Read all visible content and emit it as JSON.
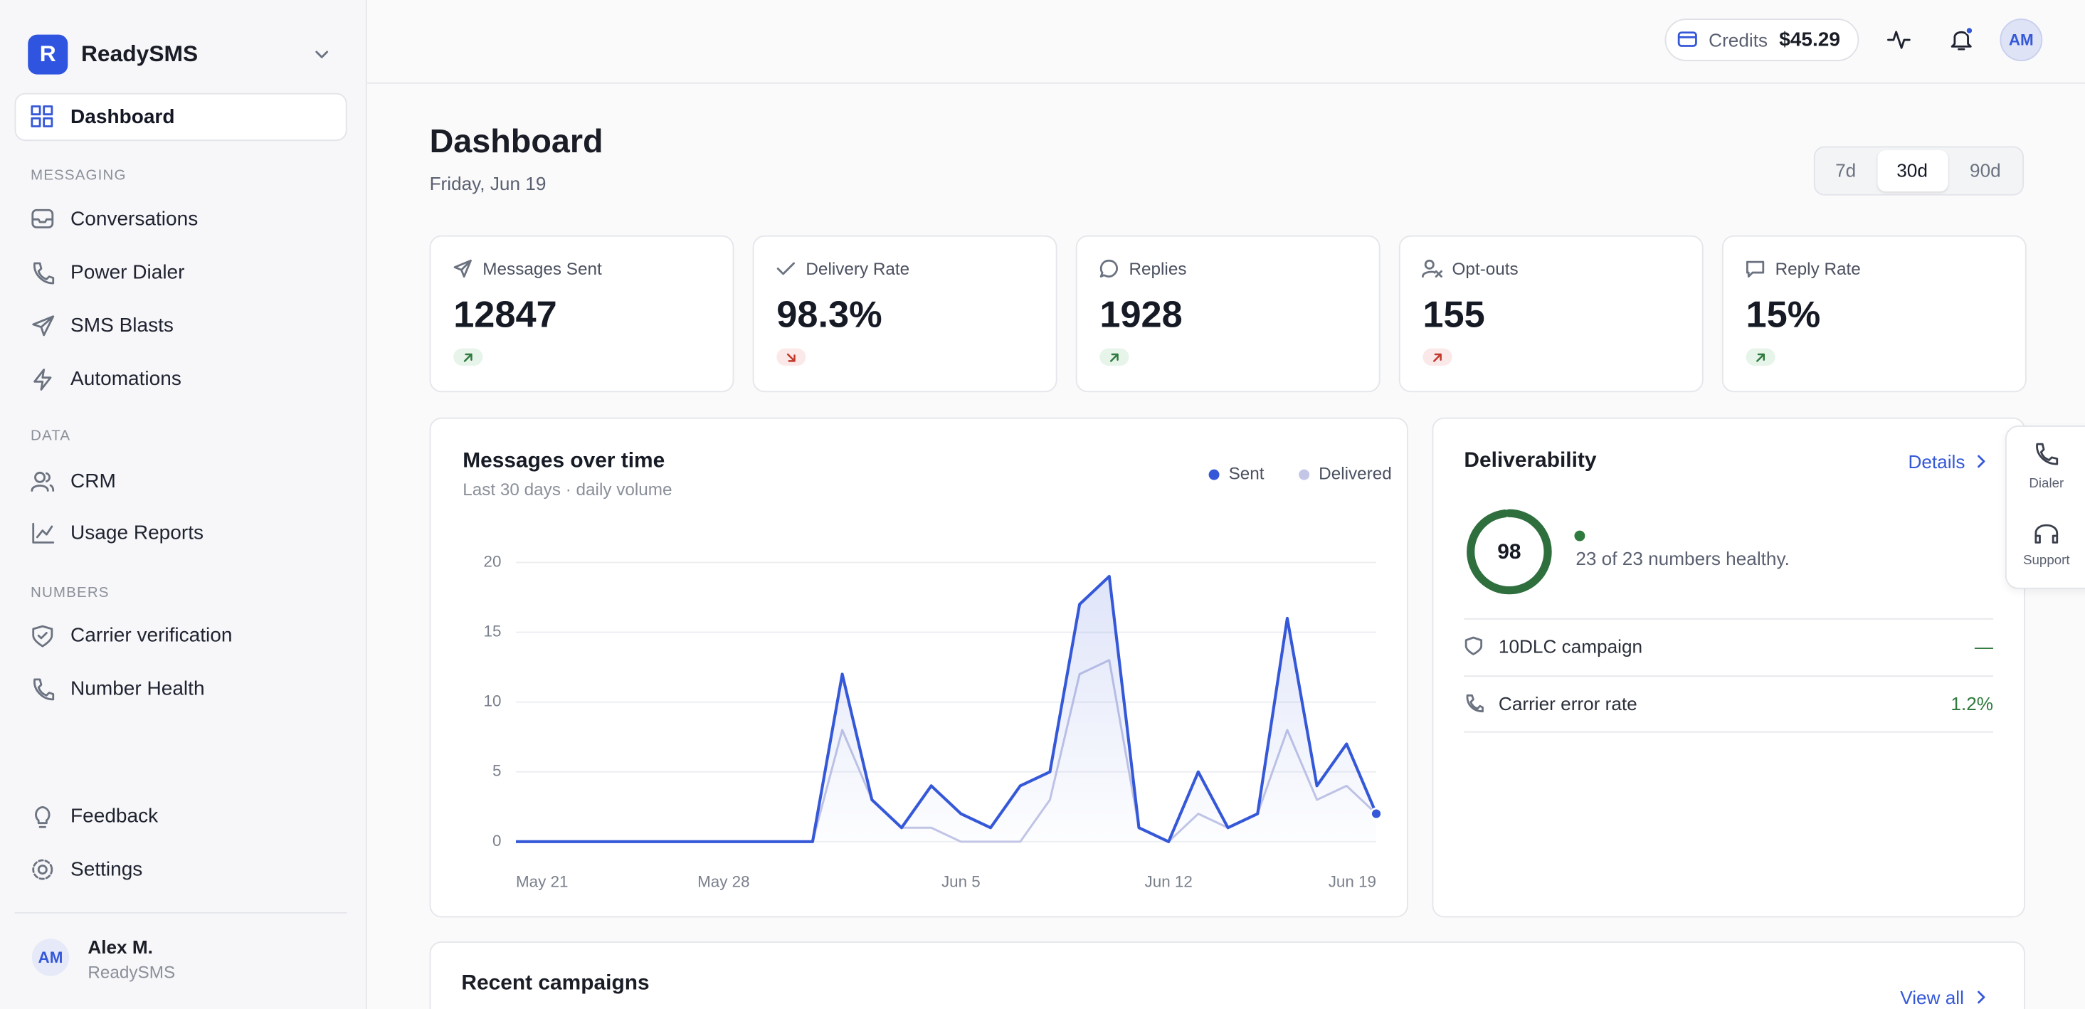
{
  "sidebar": {
    "brand_initial": "R",
    "brand": "ReadySMS",
    "active": "Dashboard",
    "sections": [
      {
        "heading": "MESSAGING",
        "items": [
          "Conversations",
          "Power Dialer",
          "SMS Blasts",
          "Automations"
        ]
      },
      {
        "heading": "DATA",
        "items": [
          "CRM",
          "Usage Reports"
        ]
      },
      {
        "heading": "NUMBERS",
        "items": [
          "Carrier verification",
          "Number Health"
        ]
      }
    ],
    "bottom": [
      "Feedback",
      "Settings"
    ],
    "user": {
      "initials": "AM",
      "name": "Alex M.",
      "org": "ReadySMS"
    }
  },
  "topbar": {
    "credits_label": "Credits",
    "credits_value": "$45.29",
    "avatar": "AM"
  },
  "header": {
    "title": "Dashboard",
    "date": "Friday, Jun 19",
    "ranges": [
      "7d",
      "30d",
      "90d"
    ],
    "selected_range": "30d"
  },
  "stats": [
    {
      "label": "Messages Sent",
      "value": "12847"
    },
    {
      "label": "Delivery Rate",
      "value": "98.3%"
    },
    {
      "label": "Replies",
      "value": "1928"
    },
    {
      "label": "Opt-outs",
      "value": "155"
    },
    {
      "label": "Reply Rate",
      "value": "15%"
    }
  ],
  "chart_data": {
    "type": "line",
    "title": "Messages over time",
    "subtitle": "Last 30 days · daily volume",
    "categories": [
      "May 21",
      null,
      null,
      null,
      null,
      null,
      null,
      "May 28",
      null,
      null,
      null,
      null,
      null,
      null,
      null,
      "Jun 5",
      null,
      null,
      null,
      null,
      null,
      null,
      "Jun 12",
      null,
      null,
      null,
      null,
      null,
      null,
      "Jun 19"
    ],
    "series": [
      {
        "name": "Sent",
        "color": "#3558d8",
        "values": [
          0,
          0,
          0,
          0,
          0,
          0,
          0,
          0,
          0,
          0,
          0,
          12,
          3,
          1,
          4,
          2,
          1,
          4,
          5,
          17,
          19,
          1,
          0,
          5,
          1,
          2,
          16,
          4,
          7,
          2
        ]
      },
      {
        "name": "Delivered",
        "color": "#c3c6e6",
        "values": [
          0,
          0,
          0,
          0,
          0,
          0,
          0,
          0,
          0,
          0,
          0,
          8,
          3,
          1,
          1,
          0,
          0,
          0,
          3,
          12,
          13,
          1,
          0,
          2,
          1,
          2,
          8,
          3,
          4,
          2
        ]
      }
    ],
    "ylim": [
      0,
      20
    ],
    "yticks": [
      0,
      5,
      10,
      15,
      20
    ],
    "grid": true
  },
  "deliverability": {
    "title": "Deliverability",
    "link": "Details",
    "score": 98,
    "score_max": 100,
    "status": "23 of 23 numbers healthy.",
    "rows": [
      {
        "label": "10DLC campaign",
        "value": "—"
      },
      {
        "label": "Carrier error rate",
        "value": "1.2%"
      }
    ]
  },
  "side_actions": [
    "Dialer",
    "Support"
  ],
  "campaigns": {
    "title": "Recent campaigns",
    "link": "View all"
  }
}
